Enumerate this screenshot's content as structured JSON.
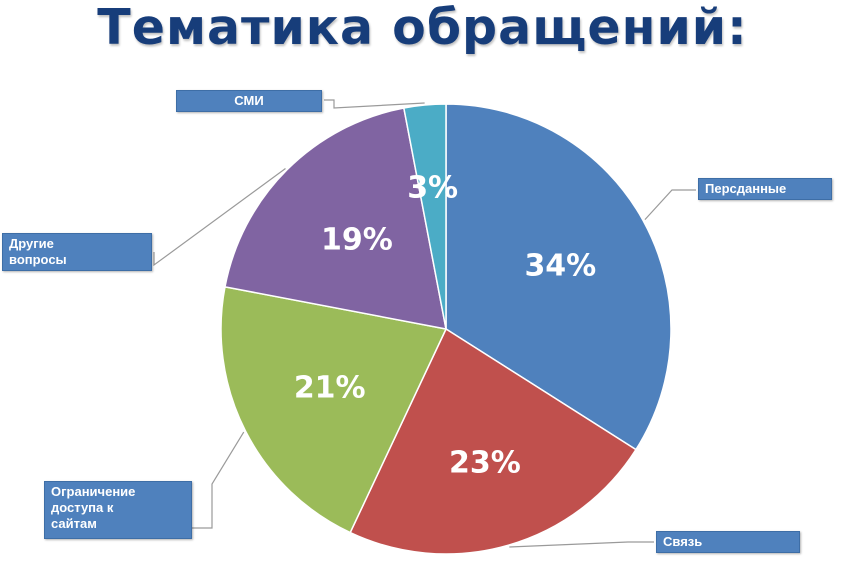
{
  "chart_data": {
    "type": "pie",
    "title": "Тематика обращений:",
    "categories": [
      "Персданные",
      "Связь",
      "Ограничение доступа к сайтам",
      "Другие вопросы",
      "СМИ"
    ],
    "values": [
      34,
      23,
      21,
      19,
      3
    ],
    "value_labels": [
      "34%",
      "23%",
      "21%",
      "19%",
      "3%"
    ],
    "category_labels": [
      "Персданные",
      "Связь",
      "Ограничение\nдоступа к\nсайтам",
      "Другие\nвопросы",
      "СМИ"
    ],
    "colors": [
      "#4f81bd",
      "#c0504d",
      "#9bbb59",
      "#8064a2",
      "#4bacc6"
    ],
    "start_angle_deg": 0,
    "direction": "clockwise",
    "legend": "category boxes with leader lines around the pie"
  }
}
